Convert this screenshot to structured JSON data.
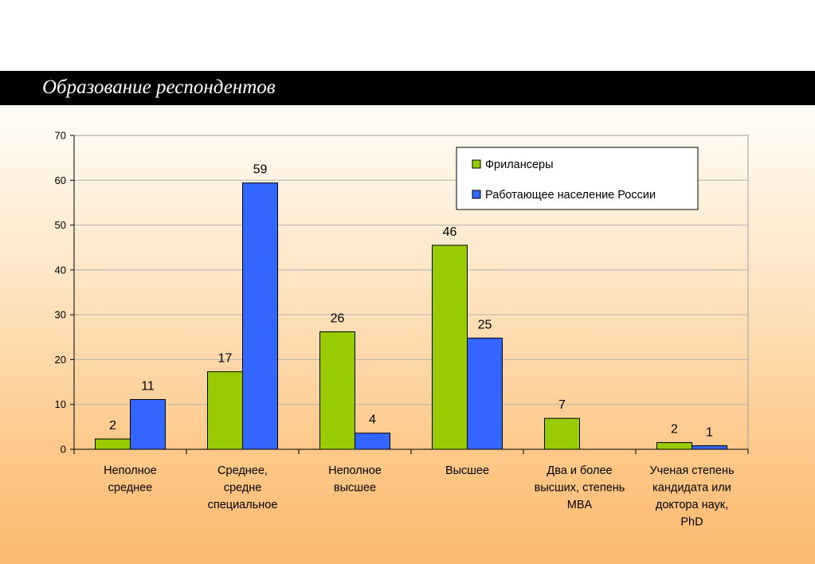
{
  "slide": {
    "title": "Образование респондентов"
  },
  "colors": {
    "freelancers": "#99cc00",
    "russia": "#3366ff"
  },
  "chart_data": {
    "type": "bar",
    "title": "",
    "xlabel": "",
    "ylabel": "",
    "ylim": [
      0,
      70
    ],
    "y_ticks": [
      0,
      10,
      20,
      30,
      40,
      50,
      60,
      70
    ],
    "grid": true,
    "legend_position": "top-right",
    "categories": [
      [
        "Неполное",
        "среднее"
      ],
      [
        "Среднее,",
        "средне",
        "специальное"
      ],
      [
        "Неполное",
        "высшее"
      ],
      [
        "Высшее"
      ],
      [
        "Два и более",
        "высших, степень",
        "MBA"
      ],
      [
        "Ученая степень",
        "кандидата или",
        "доктора наук,",
        "PhD"
      ]
    ],
    "series": [
      {
        "name": "Фрилансеры",
        "color": "#99cc00",
        "values": [
          2.3,
          17.3,
          26.2,
          45.5,
          6.9,
          1.5
        ],
        "labels": [
          "2",
          "17",
          "26",
          "46",
          "7",
          "2"
        ]
      },
      {
        "name": "Работающее население России",
        "color": "#3366ff",
        "values": [
          11.1,
          59.4,
          3.6,
          24.8,
          null,
          0.8
        ],
        "labels": [
          "11",
          "59",
          "4",
          "25",
          "",
          "1"
        ]
      }
    ]
  }
}
